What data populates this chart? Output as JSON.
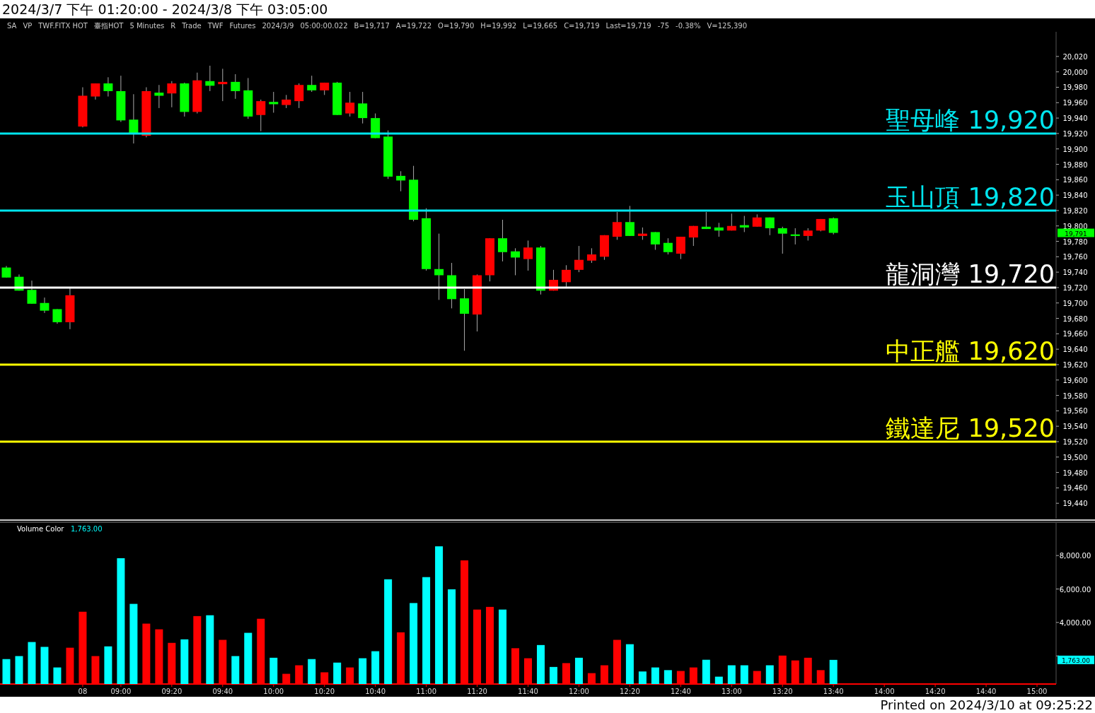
{
  "chart_data": [
    {
      "type": "candlestick",
      "title": "2024/3/7 下午 01:20:00 - 2024/3/8 下午 03:05:00",
      "categories": [
        null,
        null,
        null,
        null,
        null,
        null,
        null,
        null,
        null,
        null,
        null,
        null,
        null,
        null,
        null,
        null,
        null,
        null,
        null,
        null,
        null,
        null,
        null,
        null,
        null,
        null,
        null,
        null,
        null,
        null,
        null,
        null,
        null,
        null,
        null,
        null,
        null,
        null,
        null,
        null,
        null,
        null,
        null,
        null,
        null,
        null,
        null,
        null,
        null,
        null,
        null,
        null,
        null,
        null,
        null,
        null,
        null,
        null,
        null,
        null,
        null,
        null,
        null,
        null,
        null,
        null,
        null,
        null,
        null,
        null,
        null,
        null,
        null,
        null,
        null,
        null,
        null,
        null,
        null,
        null,
        null,
        null,
        null
      ],
      "ohlc": [
        [
          19746,
          19748,
          19733,
          19733
        ],
        [
          19734,
          19737,
          19716,
          19716
        ],
        [
          19717,
          19729,
          19699,
          19699
        ],
        [
          19700,
          19707,
          19687,
          19690
        ],
        [
          19692,
          19692,
          19673,
          19675
        ],
        [
          19675,
          19720,
          19666,
          19710
        ],
        [
          19929,
          19980,
          19928,
          19969
        ],
        [
          19968,
          19985,
          19964,
          19985
        ],
        [
          19985,
          19993,
          19968,
          19975
        ],
        [
          19975,
          19995,
          19935,
          19937
        ],
        [
          19938,
          19971,
          19907,
          19920
        ],
        [
          19917,
          19980,
          19915,
          19975
        ],
        [
          19973,
          19983,
          19953,
          19969
        ],
        [
          19972,
          19988,
          19954,
          19985
        ],
        [
          19985,
          19986,
          19942,
          19948
        ],
        [
          19948,
          19999,
          19946,
          19989
        ],
        [
          19988,
          20008,
          19975,
          19982
        ],
        [
          19984,
          20004,
          19962,
          19987
        ],
        [
          19987,
          19997,
          19965,
          19975
        ],
        [
          19976,
          19992,
          19939,
          19942
        ],
        [
          19944,
          19964,
          19923,
          19962
        ],
        [
          19961,
          19974,
          19947,
          19958
        ],
        [
          19957,
          19970,
          19953,
          19964
        ],
        [
          19962,
          19985,
          19953,
          19983
        ],
        [
          19983,
          19995,
          19974,
          19976
        ],
        [
          19976,
          19986,
          19970,
          19986
        ],
        [
          19986,
          19987,
          19944,
          19944
        ],
        [
          19946,
          19974,
          19942,
          19960
        ],
        [
          19959,
          19974,
          19933,
          19940
        ],
        [
          19940,
          19946,
          19914,
          19914
        ],
        [
          19916,
          19924,
          19861,
          19864
        ],
        [
          19865,
          19871,
          19845,
          19859
        ],
        [
          19860,
          19878,
          19806,
          19808
        ],
        [
          19810,
          19823,
          19742,
          19744
        ],
        [
          19744,
          19790,
          19704,
          19736
        ],
        [
          19736,
          19752,
          19693,
          19705
        ],
        [
          19706,
          19718,
          19638,
          19686
        ],
        [
          19685,
          19737,
          19663,
          19736
        ],
        [
          19736,
          19784,
          19728,
          19784
        ],
        [
          19784,
          19808,
          19754,
          19766
        ],
        [
          19767,
          19771,
          19736,
          19759
        ],
        [
          19757,
          19781,
          19742,
          19772
        ],
        [
          19772,
          19774,
          19711,
          19716
        ],
        [
          19716,
          19743,
          19716,
          19730
        ],
        [
          19727,
          19749,
          19721,
          19743
        ],
        [
          19743,
          19774,
          19740,
          19756
        ],
        [
          19755,
          19771,
          19752,
          19763
        ],
        [
          19760,
          19788,
          19756,
          19788
        ],
        [
          19786,
          19818,
          19782,
          19805
        ],
        [
          19805,
          19826,
          19787,
          19787
        ],
        [
          19787,
          19798,
          19782,
          19790
        ],
        [
          19792,
          19792,
          19769,
          19776
        ],
        [
          19778,
          19784,
          19763,
          19766
        ],
        [
          19764,
          19786,
          19757,
          19786
        ],
        [
          19785,
          19800,
          19774,
          19800
        ],
        [
          19799,
          19818,
          19796,
          19796
        ],
        [
          19798,
          19804,
          19786,
          19794
        ],
        [
          19794,
          19816,
          19794,
          19800
        ],
        [
          19801,
          19813,
          19792,
          19798
        ],
        [
          19799,
          19815,
          19799,
          19811
        ],
        [
          19811,
          19811,
          19788,
          19797
        ],
        [
          19797,
          19799,
          19764,
          19790
        ],
        [
          19789,
          19797,
          19776,
          19787
        ],
        [
          19787,
          19797,
          19781,
          19794
        ],
        [
          19794,
          19809,
          19793,
          19809
        ],
        [
          19810,
          19811,
          19789,
          19791
        ],
        null,
        null,
        null,
        null,
        null,
        null,
        null,
        null,
        null,
        null,
        null,
        null,
        null,
        null,
        null,
        null,
        null
      ],
      "colors": [
        "#00ff00",
        "#00ff00",
        "#00ff00",
        "#00ff00",
        "#00ff00",
        "#ff0000",
        "#ff0000",
        "#ff0000",
        "#00ff00",
        "#00ff00",
        "#00ff00",
        "#ff0000",
        "#00ff00",
        "#ff0000",
        "#00ff00",
        "#ff0000",
        "#00ff00",
        "#ff0000",
        "#00ff00",
        "#00ff00",
        "#ff0000",
        "#00ff00",
        "#ff0000",
        "#ff0000",
        "#00ff00",
        "#ff0000",
        "#00ff00",
        "#ff0000",
        "#00ff00",
        "#00ff00",
        "#00ff00",
        "#00ff00",
        "#00ff00",
        "#00ff00",
        "#00ff00",
        "#00ff00",
        "#00ff00",
        "#ff0000",
        "#ff0000",
        "#00ff00",
        "#00ff00",
        "#ff0000",
        "#00ff00",
        "#ff0000",
        "#ff0000",
        "#ff0000",
        "#ff0000",
        "#ff0000",
        "#ff0000",
        "#00ff00",
        "#ff0000",
        "#00ff00",
        "#00ff00",
        "#ff0000",
        "#ff0000",
        "#00ff00",
        "#00ff00",
        "#ff0000",
        "#00ff00",
        "#ff0000",
        "#00ff00",
        "#00ff00",
        "#00ff00",
        "#ff0000",
        "#ff0000",
        "#00ff00",
        null,
        null,
        null,
        null,
        null,
        null,
        null,
        null,
        null,
        null,
        null,
        null,
        null,
        null,
        null,
        null,
        null
      ],
      "ylim": [
        19420,
        20052
      ],
      "yticks": [
        {
          "value": 19440,
          "label": "19,440"
        },
        {
          "value": 19460,
          "label": "19,460"
        },
        {
          "value": 19480,
          "label": "19,480"
        },
        {
          "value": 19500,
          "label": "19,500"
        },
        {
          "value": 19520,
          "label": "19,520"
        },
        {
          "value": 19540,
          "label": "19,540"
        },
        {
          "value": 19560,
          "label": "19,560"
        },
        {
          "value": 19580,
          "label": "19,580"
        },
        {
          "value": 19600,
          "label": "19,600"
        },
        {
          "value": 19620,
          "label": "19,620"
        },
        {
          "value": 19640,
          "label": "19,640"
        },
        {
          "value": 19660,
          "label": "19,660"
        },
        {
          "value": 19680,
          "label": "19,680"
        },
        {
          "value": 19700,
          "label": "19,700"
        },
        {
          "value": 19720,
          "label": "19,720"
        },
        {
          "value": 19740,
          "label": "19,740"
        },
        {
          "value": 19760,
          "label": "19,760"
        },
        {
          "value": 19780,
          "label": "19,780"
        },
        {
          "value": 19800,
          "label": "19,800"
        },
        {
          "value": 19820,
          "label": "19,820"
        },
        {
          "value": 19840,
          "label": "19,840"
        },
        {
          "value": 19860,
          "label": "19,860"
        },
        {
          "value": 19880,
          "label": "19,880"
        },
        {
          "value": 19900,
          "label": "19,900"
        },
        {
          "value": 19920,
          "label": "19,920"
        },
        {
          "value": 19940,
          "label": "19,940"
        },
        {
          "value": 19960,
          "label": "19,960"
        },
        {
          "value": 19980,
          "label": "19,980"
        },
        {
          "value": 20000,
          "label": "20,000"
        },
        {
          "value": 20020,
          "label": "20,020"
        }
      ],
      "tick_labels": "y",
      "ref_lines": [
        {
          "axis": "y",
          "value": 19920,
          "label": "聖母峰 19,920",
          "color": "#00e5ee"
        },
        {
          "axis": "y",
          "value": 19820,
          "label": "玉山頂 19,820",
          "color": "#00e5ee"
        },
        {
          "axis": "y",
          "value": 19720,
          "label": "龍洞灣 19,720",
          "color": "#ffffff"
        },
        {
          "axis": "y",
          "value": 19620,
          "label": "中正艦 19,620",
          "color": "#ffff00"
        },
        {
          "axis": "y",
          "value": 19520,
          "label": "鐵達尼 19,520",
          "color": "#ffff00"
        }
      ],
      "annotations": [
        "SA",
        "VP",
        "TWF.FITX HOT",
        "臺指HOT",
        "5 Minutes",
        "R",
        "Trade",
        "TWF",
        "Futures",
        "2024/3/9",
        "05:00:00.022",
        "B=19,717",
        "A=19,722",
        "O=19,790",
        "H=19,992",
        "L=19,665",
        "C=19,719",
        "Last=19,719",
        "-75",
        "-0.38%",
        "V=125,390",
        "19,791"
      ]
    },
    {
      "type": "bar",
      "title": "Volume Color",
      "subtitle": "1,763.00",
      "categories": [
        null,
        null,
        null,
        null,
        null,
        null,
        "08",
        null,
        null,
        "09:00",
        null,
        null,
        null,
        "09:20",
        null,
        null,
        null,
        "09:40",
        null,
        null,
        null,
        "10:00",
        null,
        null,
        null,
        "10:20",
        null,
        null,
        null,
        "10:40",
        null,
        null,
        null,
        "11:00",
        null,
        null,
        null,
        "11:20",
        null,
        null,
        null,
        "11:40",
        null,
        null,
        null,
        "12:00",
        null,
        null,
        null,
        "12:20",
        null,
        null,
        null,
        "12:40",
        null,
        null,
        null,
        "13:00",
        null,
        null,
        null,
        "13:20",
        null,
        null,
        null,
        "13:40",
        null,
        null,
        null,
        "14:00",
        null,
        null,
        null,
        "14:20",
        null,
        null,
        null,
        "14:40",
        null,
        null,
        null,
        "15:00",
        null
      ],
      "values": [
        1810,
        1990,
        2830,
        2540,
        1310,
        2490,
        4640,
        1990,
        2570,
        7840,
        5110,
        3930,
        3590,
        2780,
        2990,
        4380,
        4430,
        2960,
        1990,
        3380,
        4220,
        1890,
        930,
        1440,
        1810,
        1020,
        1600,
        1310,
        1860,
        2280,
        6580,
        3410,
        5160,
        6710,
        8550,
        5980,
        7710,
        4770,
        4930,
        4770,
        2460,
        1860,
        2650,
        1340,
        1570,
        1890,
        970,
        1440,
        2960,
        2700,
        1070,
        1310,
        1150,
        1100,
        1310,
        1770,
        760,
        1440,
        1440,
        1100,
        1440,
        2020,
        1730,
        1890,
        1150,
        1763,
        null,
        null,
        null,
        null,
        null,
        null,
        null,
        null,
        null,
        null,
        null,
        null,
        null,
        null,
        null,
        null,
        null
      ],
      "colors": [
        "#00ffff",
        "#00ffff",
        "#00ffff",
        "#00ffff",
        "#00ffff",
        "#ff0000",
        "#ff0000",
        "#ff0000",
        "#00ffff",
        "#00ffff",
        "#00ffff",
        "#ff0000",
        "#ff0000",
        "#ff0000",
        "#00ffff",
        "#ff0000",
        "#00ffff",
        "#ff0000",
        "#00ffff",
        "#00ffff",
        "#ff0000",
        "#00ffff",
        "#ff0000",
        "#ff0000",
        "#00ffff",
        "#ff0000",
        "#00ffff",
        "#ff0000",
        "#00ffff",
        "#00ffff",
        "#00ffff",
        "#ff0000",
        "#00ffff",
        "#00ffff",
        "#00ffff",
        "#00ffff",
        "#ff0000",
        "#ff0000",
        "#ff0000",
        "#00ffff",
        "#ff0000",
        "#ff0000",
        "#00ffff",
        "#00ffff",
        "#ff0000",
        "#00ffff",
        "#ff0000",
        "#ff0000",
        "#ff0000",
        "#00ffff",
        "#00ffff",
        "#00ffff",
        "#00ffff",
        "#ff0000",
        "#ff0000",
        "#00ffff",
        "#00ffff",
        "#00ffff",
        "#00ffff",
        "#ff0000",
        "#00ffff",
        "#ff0000",
        "#ff0000",
        "#ff0000",
        "#ff0000",
        "#00ffff",
        null,
        null,
        null,
        null,
        null,
        null,
        null,
        null,
        null,
        null,
        null,
        null,
        null,
        null,
        null,
        null,
        null
      ],
      "ylim": [
        320,
        9950
      ],
      "yticks": [
        {
          "value": 2000,
          "label": null
        },
        {
          "value": 4000,
          "label": "4,000.00"
        },
        {
          "value": 6000,
          "label": "6,000.00"
        },
        {
          "value": 8000,
          "label": "8,000.00"
        }
      ],
      "annotations": [
        "1,763.00",
        "Printed on 2024/3/10 at 09:25:22"
      ]
    }
  ]
}
